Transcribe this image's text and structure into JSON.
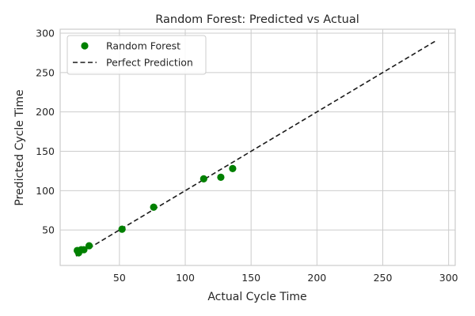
{
  "chart_data": {
    "type": "scatter",
    "title": "Random Forest: Predicted vs Actual",
    "xlabel": "Actual Cycle Time",
    "ylabel": "Predicted Cycle Time",
    "xlim": [
      5,
      305
    ],
    "ylim": [
      5,
      305
    ],
    "xticks": [
      50,
      100,
      150,
      200,
      250,
      300
    ],
    "yticks": [
      50,
      100,
      150,
      200,
      250,
      300
    ],
    "grid": true,
    "legend_position": "top-left",
    "series": [
      {
        "name": "Random Forest",
        "kind": "scatter",
        "color": "#008000",
        "x": [
          18,
          19,
          21,
          23,
          27,
          52,
          76,
          114,
          127,
          136
        ],
        "y": [
          24,
          21,
          25,
          25,
          30,
          51,
          79,
          115,
          117,
          128
        ]
      },
      {
        "name": "Perfect Prediction",
        "kind": "line",
        "style": "dashed",
        "color": "#1a1a1a",
        "x": [
          17,
          290
        ],
        "y": [
          17,
          290
        ]
      }
    ]
  }
}
